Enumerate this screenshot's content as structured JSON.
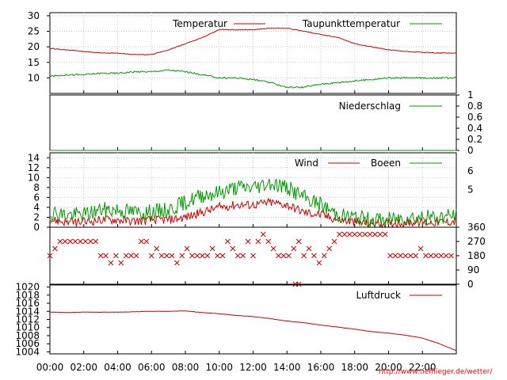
{
  "credit": "http://www.tiefflieger.de/wetter/",
  "x_axis": {
    "ticks": [
      "00:00",
      "02:00",
      "04:00",
      "06:00",
      "08:00",
      "10:00",
      "12:00",
      "14:00",
      "16:00",
      "18:00",
      "20:00",
      "22:00"
    ]
  },
  "chart_data": [
    {
      "type": "line",
      "panel": "temperature",
      "x_unit": "hours",
      "ylim": [
        5,
        31
      ],
      "yticks": [
        10,
        15,
        20,
        25,
        30
      ],
      "grid": true,
      "legend_position": "top",
      "colors": {
        "Temperatur": "#cc0000",
        "Taupunkttemperatur": "#009900"
      },
      "series": [
        {
          "name": "Temperatur",
          "x": [
            0,
            1,
            2,
            3,
            4,
            5,
            6,
            7,
            8,
            9,
            10,
            11,
            12,
            13,
            14,
            15,
            16,
            17,
            18,
            19,
            20,
            21,
            22,
            23,
            24
          ],
          "values": [
            19.5,
            19,
            18.5,
            18,
            18,
            17.5,
            17.5,
            19,
            21,
            23,
            25.5,
            25.5,
            25.5,
            26,
            26,
            25,
            24,
            23,
            21,
            20,
            19,
            18.5,
            18.2,
            18,
            18
          ]
        },
        {
          "name": "Taupunkttemperatur",
          "x": [
            0,
            1,
            2,
            3,
            4,
            5,
            6,
            7,
            8,
            9,
            10,
            11,
            12,
            13,
            14,
            15,
            16,
            17,
            18,
            19,
            20,
            21,
            22,
            23,
            24
          ],
          "values": [
            10.5,
            11,
            11,
            11.5,
            11.5,
            12,
            12,
            12.5,
            12,
            11,
            10,
            10,
            9.5,
            8.5,
            7,
            7,
            8,
            8.5,
            9,
            9.5,
            10,
            10,
            10,
            10,
            10
          ]
        }
      ]
    },
    {
      "type": "line",
      "panel": "precipitation",
      "ylim": [
        0,
        1
      ],
      "yticks": [
        0,
        0.2,
        0.4,
        0.6,
        0.8,
        1
      ],
      "legend_position": "top-right",
      "colors": {
        "Niederschlag": "#009900"
      },
      "series": [
        {
          "name": "Niederschlag",
          "x": [
            0,
            24
          ],
          "values": [
            0,
            0
          ]
        }
      ]
    },
    {
      "type": "line",
      "panel": "wind",
      "ylim": [
        0,
        15
      ],
      "yticks": [
        0,
        2,
        4,
        6,
        8,
        10,
        12,
        14
      ],
      "right_ticks": [
        5,
        6
      ],
      "grid": true,
      "legend_position": "top-right",
      "colors": {
        "Wind": "#cc0000",
        "Boeen": "#009900"
      },
      "series": [
        {
          "name": "Wind",
          "x": [
            0,
            1,
            2,
            3,
            4,
            5,
            6,
            7,
            8,
            9,
            10,
            11,
            12,
            13,
            14,
            15,
            16,
            17,
            18,
            19,
            20,
            21,
            22,
            23,
            24
          ],
          "values": [
            1.5,
            1,
            1,
            1.5,
            1.5,
            1.2,
            1.5,
            1.5,
            2,
            3,
            4,
            4.5,
            4.5,
            5,
            4.5,
            3,
            2.5,
            1.5,
            1,
            0.8,
            0.8,
            1,
            1,
            1,
            1.2
          ]
        },
        {
          "name": "Boeen",
          "x": [
            0,
            1,
            2,
            3,
            4,
            5,
            6,
            7,
            8,
            9,
            10,
            11,
            12,
            13,
            14,
            15,
            16,
            17,
            18,
            19,
            20,
            21,
            22,
            23,
            24
          ],
          "values": [
            3,
            2.5,
            2.5,
            3.5,
            3.5,
            3,
            3,
            3.5,
            5,
            6.5,
            7,
            8,
            8,
            9,
            8,
            6,
            4.5,
            2.5,
            2,
            1.5,
            1.5,
            2,
            2,
            2,
            2.5
          ]
        }
      ]
    },
    {
      "type": "scatter",
      "panel": "wind-direction",
      "ylim": [
        0,
        360
      ],
      "yticks": [
        0,
        90,
        180,
        270,
        360
      ],
      "colors": {
        "direction": "#cc0000"
      },
      "series": [
        {
          "x": [
            0,
            0.3,
            0.6,
            0.9,
            1.2,
            1.5,
            1.8,
            2.1,
            2.4,
            2.7,
            3,
            3.3,
            3.6,
            3.9,
            4.2,
            4.5,
            4.8,
            5.1,
            5.4,
            5.7,
            6,
            6.3,
            6.6,
            6.9,
            7.2,
            7.5,
            7.8,
            8.1,
            8.4,
            8.7,
            9,
            9.3,
            9.6,
            9.9,
            10.2,
            10.5,
            10.8,
            11.1,
            11.4,
            11.7,
            12,
            12.3,
            12.6,
            12.9,
            13.2,
            13.5,
            13.8,
            14.1,
            14.4,
            14.7,
            15,
            15.3,
            15.6,
            15.9,
            16.2,
            16.5,
            16.8,
            17.1,
            17.4,
            17.7,
            18,
            18.3,
            18.6,
            18.9,
            19.2,
            19.5,
            19.8,
            20.1,
            20.4,
            20.7,
            21,
            21.3,
            21.6,
            21.9,
            22.2,
            22.5,
            22.8,
            23.1,
            23.4,
            23.7
          ],
          "values": [
            180,
            225,
            270,
            270,
            270,
            270,
            270,
            270,
            270,
            270,
            180,
            180,
            135,
            180,
            135,
            180,
            180,
            180,
            270,
            270,
            180,
            225,
            180,
            180,
            180,
            135,
            180,
            225,
            180,
            180,
            180,
            180,
            225,
            180,
            180,
            270,
            225,
            180,
            180,
            270,
            180,
            270,
            315,
            270,
            225,
            180,
            180,
            180,
            225,
            270,
            180,
            225,
            180,
            135,
            180,
            225,
            270,
            315,
            315,
            315,
            315,
            315,
            315,
            315,
            315,
            315,
            315,
            180,
            180,
            180,
            180,
            180,
            180,
            225,
            180,
            180,
            180,
            180,
            180,
            180
          ]
        },
        {
          "x": [
            14.5,
            14.7
          ],
          "values": [
            0,
            0
          ]
        }
      ]
    },
    {
      "type": "line",
      "panel": "pressure",
      "ylim": [
        1003.5,
        1020.5
      ],
      "yticks": [
        1004,
        1006,
        1008,
        1010,
        1012,
        1014,
        1016,
        1018,
        1020
      ],
      "legend_position": "top-right",
      "colors": {
        "Luftdruck": "#cc0000"
      },
      "series": [
        {
          "name": "Luftdruck",
          "x": [
            0,
            1,
            2,
            3,
            4,
            5,
            6,
            7,
            8,
            9,
            10,
            11,
            12,
            13,
            14,
            15,
            16,
            17,
            18,
            19,
            20,
            21,
            22,
            23,
            24
          ],
          "values": [
            1013.8,
            1013.7,
            1013.8,
            1013.8,
            1013.8,
            1013.9,
            1014,
            1014,
            1014.1,
            1013.7,
            1013.4,
            1013,
            1012.7,
            1012.2,
            1011.6,
            1011.2,
            1010.6,
            1010.1,
            1009.6,
            1009,
            1008.6,
            1008.1,
            1007.4,
            1006,
            1004.3
          ]
        }
      ]
    }
  ]
}
